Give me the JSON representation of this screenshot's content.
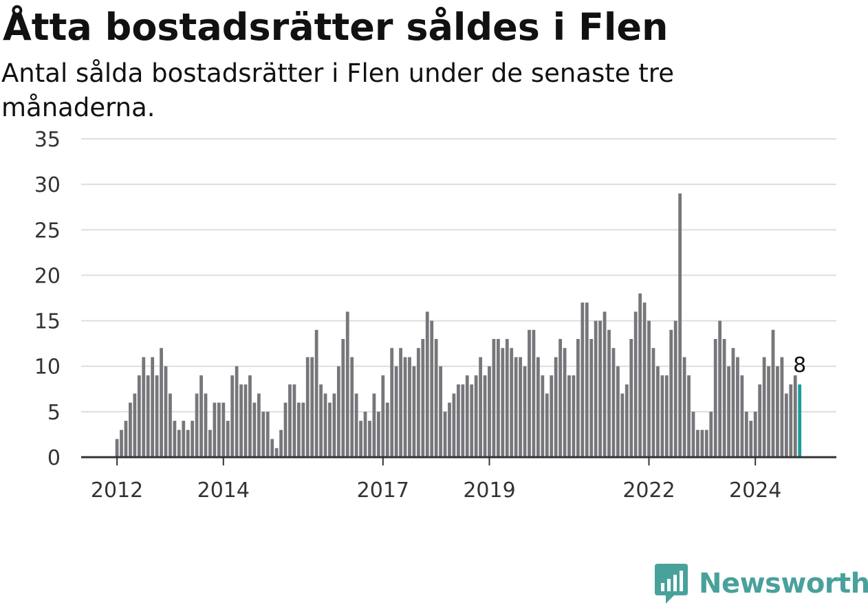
{
  "title": "Åtta bostadsrätter såldes i Flen",
  "subtitle": "Antal sålda bostadsrätter i Flen under de senaste tre månaderna.",
  "brand": {
    "name": "Newsworthy",
    "icon": "newsworthy-logo-icon",
    "color": "#49a19b"
  },
  "colors": {
    "bar": "#77767b",
    "highlight": "#1a9e96",
    "grid": "#dddddd",
    "axis": "#333333"
  },
  "chart_data": {
    "type": "bar",
    "title": "Åtta bostadsrätter såldes i Flen",
    "subtitle": "Antal sålda bostadsrätter i Flen under de senaste tre månaderna.",
    "xlabel": "",
    "ylabel": "",
    "ylim": [
      0,
      35
    ],
    "yticks": [
      0,
      5,
      10,
      15,
      20,
      25,
      30,
      35
    ],
    "grid": true,
    "x_start": "2011-06",
    "x_end": "2024-11",
    "year_ticks": [
      {
        "label": "2012",
        "month": "2012-01"
      },
      {
        "label": "2014",
        "month": "2014-01"
      },
      {
        "label": "2017",
        "month": "2017-01"
      },
      {
        "label": "2019",
        "month": "2019-01"
      },
      {
        "label": "2022",
        "month": "2022-01"
      },
      {
        "label": "2024",
        "month": "2024-01"
      }
    ],
    "values": [
      0,
      0,
      0,
      0,
      0,
      0,
      0,
      2,
      3,
      4,
      6,
      7,
      9,
      11,
      9,
      11,
      9,
      12,
      10,
      7,
      4,
      3,
      4,
      3,
      4,
      7,
      9,
      7,
      3,
      6,
      6,
      6,
      4,
      9,
      10,
      8,
      8,
      9,
      6,
      7,
      5,
      5,
      2,
      1,
      3,
      6,
      8,
      8,
      6,
      6,
      11,
      11,
      14,
      8,
      7,
      6,
      7,
      10,
      13,
      16,
      11,
      7,
      4,
      5,
      4,
      7,
      5,
      9,
      6,
      12,
      10,
      12,
      11,
      11,
      10,
      12,
      13,
      16,
      15,
      13,
      10,
      5,
      6,
      7,
      8,
      8,
      9,
      8,
      9,
      11,
      9,
      10,
      13,
      13,
      12,
      13,
      12,
      11,
      11,
      10,
      14,
      14,
      11,
      9,
      7,
      9,
      11,
      13,
      12,
      9,
      9,
      13,
      17,
      17,
      13,
      15,
      15,
      16,
      14,
      12,
      10,
      7,
      8,
      13,
      16,
      18,
      17,
      15,
      12,
      10,
      9,
      9,
      14,
      15,
      29,
      11,
      9,
      5,
      3,
      3,
      3,
      5,
      13,
      15,
      13,
      10,
      12,
      11,
      9,
      5,
      4,
      5,
      8,
      11,
      10,
      14,
      10,
      11,
      7,
      8,
      9,
      8
    ],
    "highlight_label": "8"
  }
}
